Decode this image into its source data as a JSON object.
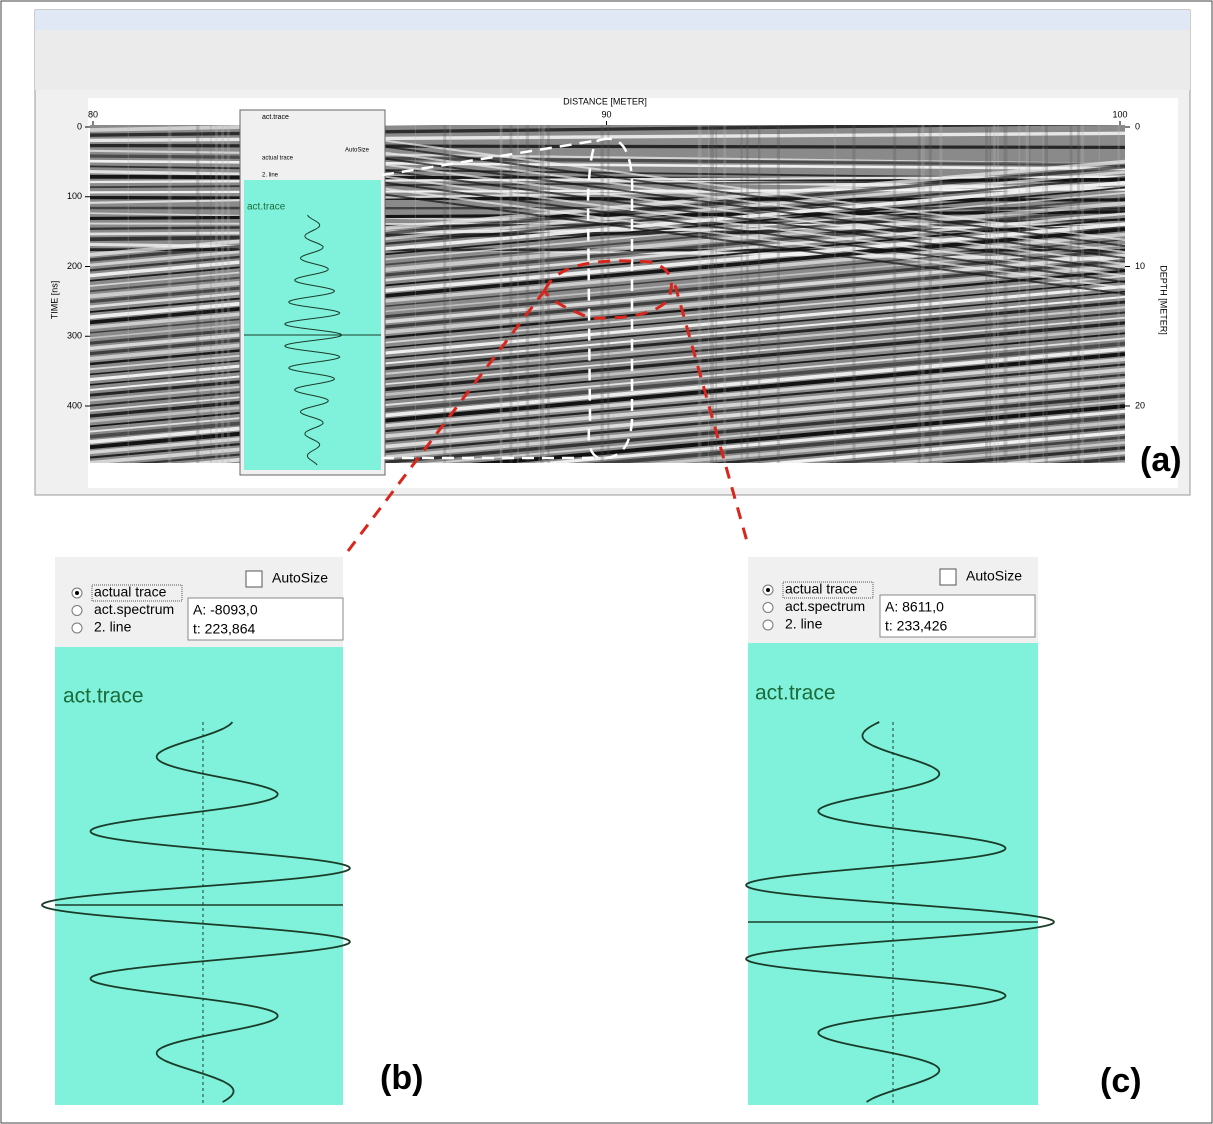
{
  "panel_a": {
    "distance_label": "DISTANCE [METER]",
    "time_label": "TIME [ns]",
    "depth_label": "DEPTH [METER]",
    "distance_ticks": [
      80,
      90,
      100
    ],
    "time_ticks": [
      0,
      100,
      200,
      300,
      400
    ],
    "depth_ticks": [
      0,
      10,
      20
    ],
    "inset": {
      "title": "act.trace",
      "options": [
        "actual trace",
        "2. line"
      ],
      "autosize": "AutoSize",
      "trace_title": "act.trace"
    },
    "label": "(a)"
  },
  "panel_b": {
    "options": [
      "actual trace",
      "act.spectrum",
      "2. line"
    ],
    "autosize": "AutoSize",
    "amplitude": "A: -8093,0",
    "time": "t: 223,864",
    "trace_title": "act.trace",
    "label": "(b)"
  },
  "panel_c": {
    "options": [
      "actual trace",
      "act.spectrum",
      "2. line"
    ],
    "autosize": "AutoSize",
    "amplitude": "A: 8611,0",
    "time": "t: 233,426",
    "trace_title": "act.trace",
    "label": "(c)"
  }
}
